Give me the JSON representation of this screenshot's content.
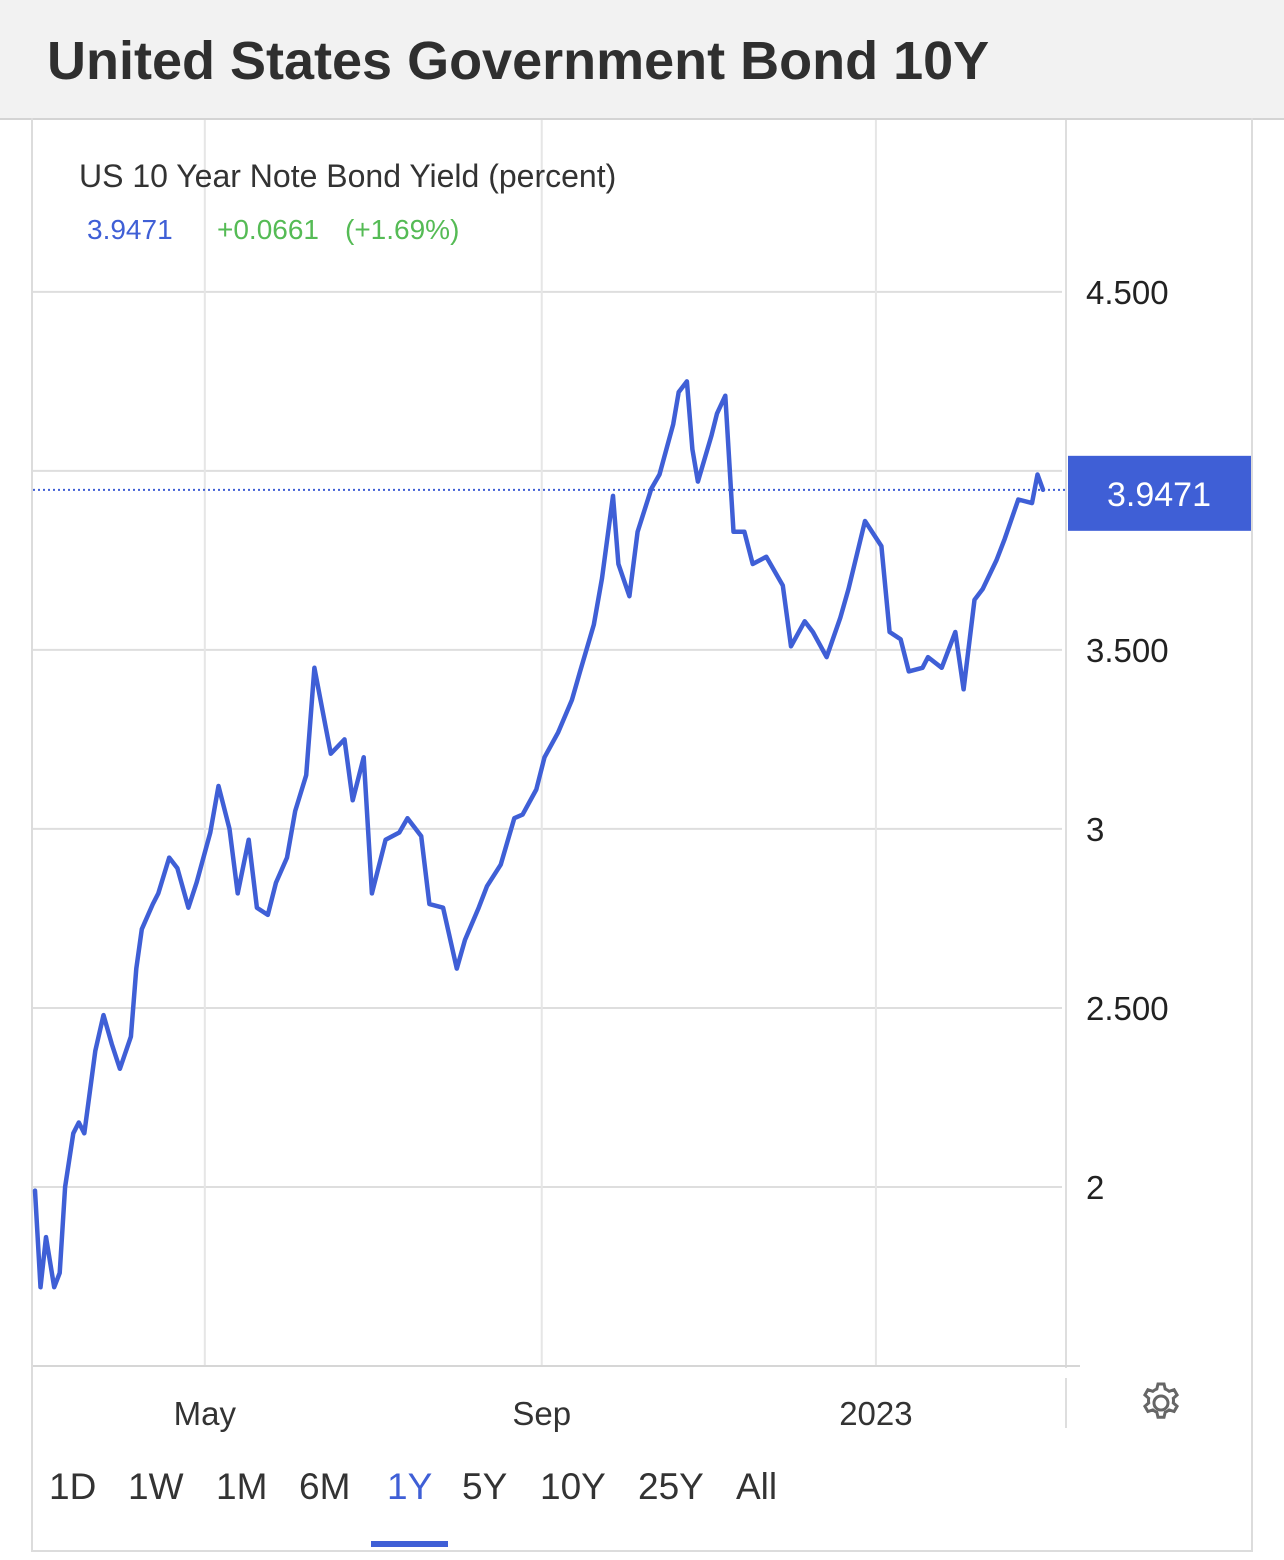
{
  "header": {
    "title": "United States Government Bond 10Y"
  },
  "quote": {
    "series_title": "US 10 Year Note Bond Yield (percent)",
    "last": "3.9471",
    "change": "+0.0661",
    "change_pct": "(+1.69%)"
  },
  "range_tabs": [
    {
      "label": "1D"
    },
    {
      "label": "1W"
    },
    {
      "label": "1M"
    },
    {
      "label": "6M"
    },
    {
      "label": "1Y",
      "active": true
    },
    {
      "label": "5Y"
    },
    {
      "label": "10Y"
    },
    {
      "label": "25Y"
    },
    {
      "label": "All"
    }
  ],
  "icons": {
    "settings": "gear-icon"
  },
  "colors": {
    "line": "#3f5fd6",
    "positive": "#55bb55",
    "badge": "#3f5fd6"
  },
  "chart_data": {
    "type": "line",
    "title": "US 10 Year Note Bond Yield (percent)",
    "ylim": [
      1.5,
      4.98
    ],
    "y_ticks": [
      {
        "value": 4.5,
        "label": "4.500"
      },
      {
        "value": 3.5,
        "label": "3.500"
      },
      {
        "value": 3,
        "label": "3"
      },
      {
        "value": 2.5,
        "label": "2.500"
      },
      {
        "value": 2,
        "label": "2"
      }
    ],
    "x_ticks": [
      {
        "date": "2022-05-01",
        "label": "May"
      },
      {
        "date": "2022-09-01",
        "label": "Sep"
      },
      {
        "date": "2023-01-01",
        "label": "2023"
      }
    ],
    "grid": true,
    "last_value_label": "3.9471",
    "last_value": 3.9471,
    "series": [
      {
        "x": [
          "2022-02-28",
          "2022-03-02",
          "2022-03-04",
          "2022-03-07",
          "2022-03-09",
          "2022-03-11",
          "2022-03-14",
          "2022-03-16",
          "2022-03-18",
          "2022-03-22",
          "2022-03-25",
          "2022-03-28",
          "2022-03-31",
          "2022-04-04",
          "2022-04-06",
          "2022-04-08",
          "2022-04-12",
          "2022-04-14",
          "2022-04-18",
          "2022-04-21",
          "2022-04-25",
          "2022-04-28",
          "2022-05-03",
          "2022-05-06",
          "2022-05-10",
          "2022-05-13",
          "2022-05-17",
          "2022-05-20",
          "2022-05-24",
          "2022-05-27",
          "2022-05-31",
          "2022-06-03",
          "2022-06-07",
          "2022-06-10",
          "2022-06-14",
          "2022-06-16",
          "2022-06-21",
          "2022-06-24",
          "2022-06-28",
          "2022-07-01",
          "2022-07-06",
          "2022-07-11",
          "2022-07-14",
          "2022-07-19",
          "2022-07-22",
          "2022-07-27",
          "2022-08-01",
          "2022-08-04",
          "2022-08-09",
          "2022-08-12",
          "2022-08-17",
          "2022-08-22",
          "2022-08-25",
          "2022-08-30",
          "2022-09-02",
          "2022-09-07",
          "2022-09-12",
          "2022-09-15",
          "2022-09-20",
          "2022-09-23",
          "2022-09-27",
          "2022-09-29",
          "2022-10-03",
          "2022-10-06",
          "2022-10-11",
          "2022-10-14",
          "2022-10-19",
          "2022-10-21",
          "2022-10-24",
          "2022-10-26",
          "2022-10-28",
          "2022-11-02",
          "2022-11-04",
          "2022-11-07",
          "2022-11-10",
          "2022-11-14",
          "2022-11-17",
          "2022-11-22",
          "2022-11-28",
          "2022-12-01",
          "2022-12-06",
          "2022-12-09",
          "2022-12-14",
          "2022-12-19",
          "2022-12-22",
          "2022-12-28",
          "2023-01-03",
          "2023-01-06",
          "2023-01-10",
          "2023-01-13",
          "2023-01-18",
          "2023-01-20",
          "2023-01-25",
          "2023-01-30",
          "2023-02-02",
          "2023-02-06",
          "2023-02-09",
          "2023-02-14",
          "2023-02-17",
          "2023-02-22",
          "2023-02-27",
          "2023-03-01",
          "2023-03-03"
        ],
        "y": [
          1.99,
          1.72,
          1.86,
          1.72,
          1.76,
          2.0,
          2.15,
          2.18,
          2.15,
          2.38,
          2.48,
          2.4,
          2.33,
          2.42,
          2.61,
          2.72,
          2.79,
          2.82,
          2.92,
          2.89,
          2.78,
          2.85,
          2.99,
          3.12,
          3.0,
          2.82,
          2.97,
          2.78,
          2.76,
          2.85,
          2.92,
          3.05,
          3.15,
          3.45,
          3.29,
          3.21,
          3.25,
          3.08,
          3.2,
          2.82,
          2.97,
          2.99,
          3.03,
          2.98,
          2.79,
          2.78,
          2.61,
          2.69,
          2.78,
          2.84,
          2.9,
          3.03,
          3.04,
          3.11,
          3.2,
          3.27,
          3.36,
          3.44,
          3.57,
          3.7,
          3.93,
          3.74,
          3.65,
          3.83,
          3.95,
          3.99,
          4.13,
          4.22,
          4.25,
          4.06,
          3.97,
          4.1,
          4.16,
          4.21,
          3.83,
          3.83,
          3.74,
          3.76,
          3.68,
          3.51,
          3.58,
          3.55,
          3.48,
          3.59,
          3.67,
          3.86,
          3.79,
          3.55,
          3.53,
          3.44,
          3.45,
          3.48,
          3.45,
          3.55,
          3.39,
          3.64,
          3.67,
          3.75,
          3.81,
          3.92,
          3.91,
          3.99,
          3.9471
        ]
      }
    ]
  }
}
